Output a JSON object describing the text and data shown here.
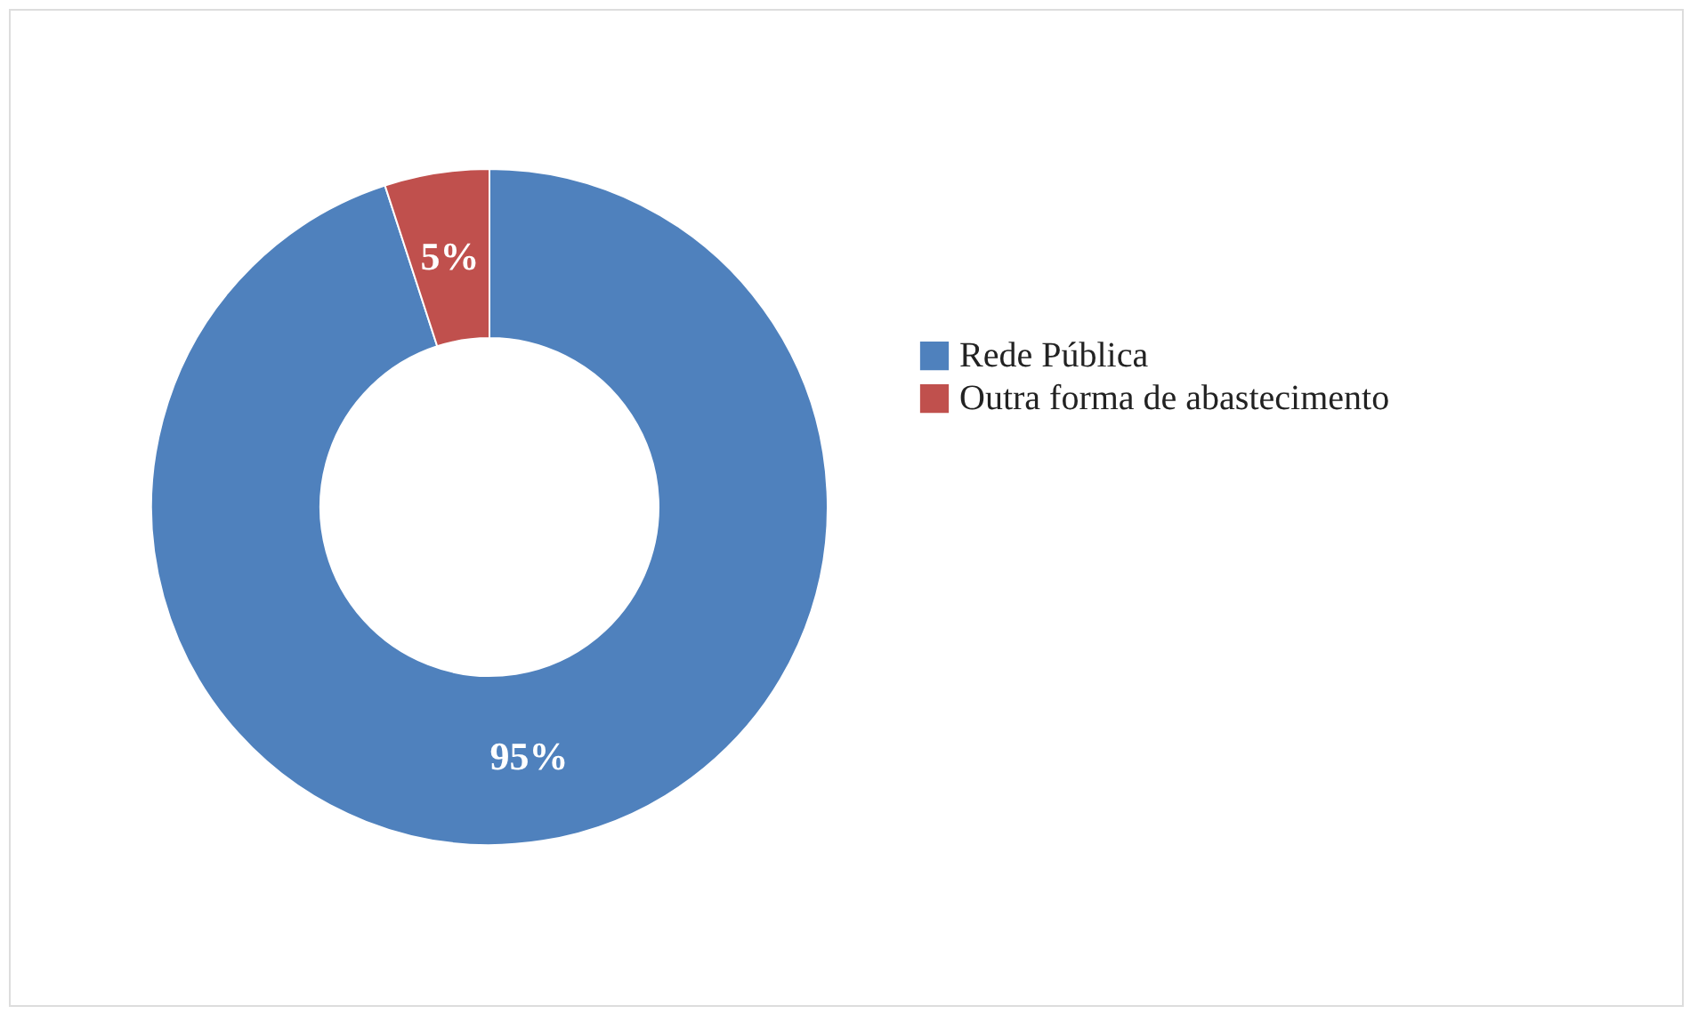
{
  "chart_data": {
    "type": "donut",
    "categories": [
      "Rede Pública",
      "Outra forma de abastecimento"
    ],
    "values": [
      95,
      5
    ],
    "colors": [
      "#4f81bd",
      "#c0504d"
    ],
    "value_labels": [
      "95%",
      "5%"
    ],
    "legend": "right"
  }
}
